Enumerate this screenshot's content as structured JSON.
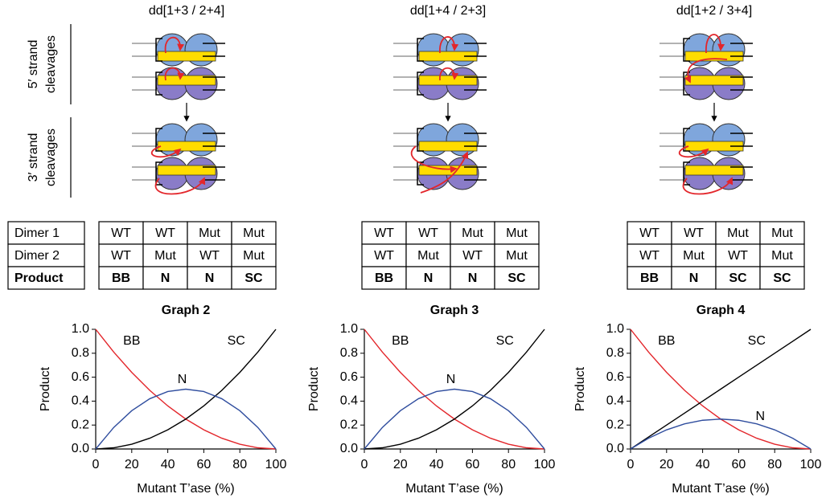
{
  "panels": [
    {
      "title": "dd[1+3 / 2+4]"
    },
    {
      "title": "dd[1+4 / 2+3]"
    },
    {
      "title": "dd[1+2 / 3+4]"
    }
  ],
  "side_labels": [
    {
      "lines": [
        "5′ strand",
        "cleavages"
      ]
    },
    {
      "lines": [
        "3′ strand",
        "cleavages"
      ]
    }
  ],
  "table_row_headers": [
    "Dimer 1",
    "Dimer 2",
    "Product"
  ],
  "tables": [
    {
      "rows": [
        [
          "WT",
          "WT",
          "Mut",
          "Mut"
        ],
        [
          "WT",
          "Mut",
          "WT",
          "Mut"
        ],
        [
          "BB",
          "N",
          "N",
          "SC"
        ]
      ]
    },
    {
      "rows": [
        [
          "WT",
          "WT",
          "Mut",
          "Mut"
        ],
        [
          "WT",
          "Mut",
          "WT",
          "Mut"
        ],
        [
          "BB",
          "N",
          "N",
          "SC"
        ]
      ]
    },
    {
      "rows": [
        [
          "WT",
          "WT",
          "Mut",
          "Mut"
        ],
        [
          "WT",
          "Mut",
          "WT",
          "Mut"
        ],
        [
          "BB",
          "N",
          "SC",
          "SC"
        ]
      ]
    }
  ],
  "chart_data": [
    {
      "type": "line",
      "title": "Graph 2",
      "x_label": "Mutant T’ase (%)",
      "y_label": "Product",
      "x": [
        0,
        10,
        20,
        30,
        40,
        50,
        60,
        70,
        80,
        90,
        100
      ],
      "series": [
        {
          "name": "BB",
          "color": "#e3262b",
          "values": [
            1,
            0.81,
            0.64,
            0.49,
            0.36,
            0.25,
            0.16,
            0.09,
            0.04,
            0.01,
            0
          ]
        },
        {
          "name": "SC",
          "color": "#000000",
          "values": [
            0,
            0.01,
            0.04,
            0.09,
            0.16,
            0.25,
            0.36,
            0.49,
            0.64,
            0.81,
            1
          ]
        },
        {
          "name": "N",
          "color": "#2f4d9e",
          "values": [
            0,
            0.18,
            0.32,
            0.42,
            0.48,
            0.5,
            0.48,
            0.42,
            0.32,
            0.18,
            0
          ]
        }
      ],
      "xlim": [
        0,
        100
      ],
      "ylim": [
        0,
        1
      ],
      "xticks": [
        0,
        20,
        40,
        60,
        80,
        100
      ],
      "yticks": [
        {
          "value": 0,
          "label": "0.0"
        },
        0.2,
        0.4,
        0.6,
        0.8,
        {
          "value": 1,
          "label": "1.0"
        }
      ]
    },
    {
      "type": "line",
      "title": "Graph 3",
      "x_label": "Mutant T’ase (%)",
      "y_label": "Product",
      "x": [
        0,
        10,
        20,
        30,
        40,
        50,
        60,
        70,
        80,
        90,
        100
      ],
      "series": [
        {
          "name": "BB",
          "color": "#e3262b",
          "values": [
            1,
            0.81,
            0.64,
            0.49,
            0.36,
            0.25,
            0.16,
            0.09,
            0.04,
            0.01,
            0
          ]
        },
        {
          "name": "SC",
          "color": "#000000",
          "values": [
            0,
            0.01,
            0.04,
            0.09,
            0.16,
            0.25,
            0.36,
            0.49,
            0.64,
            0.81,
            1
          ]
        },
        {
          "name": "N",
          "color": "#2f4d9e",
          "values": [
            0,
            0.18,
            0.32,
            0.42,
            0.48,
            0.5,
            0.48,
            0.42,
            0.32,
            0.18,
            0
          ]
        }
      ],
      "xlim": [
        0,
        100
      ],
      "ylim": [
        0,
        1
      ],
      "xticks": [
        0,
        20,
        40,
        60,
        80,
        100
      ],
      "yticks": [
        {
          "value": 0,
          "label": "0.0"
        },
        0.2,
        0.4,
        0.6,
        0.8,
        {
          "value": 1,
          "label": "1.0"
        }
      ]
    },
    {
      "type": "line",
      "title": "Graph 4",
      "x_label": "Mutant T’ase (%)",
      "y_label": "Product",
      "x": [
        0,
        10,
        20,
        30,
        40,
        50,
        60,
        70,
        80,
        90,
        100
      ],
      "series": [
        {
          "name": "BB",
          "color": "#e3262b",
          "values": [
            1,
            0.81,
            0.64,
            0.49,
            0.36,
            0.25,
            0.16,
            0.09,
            0.04,
            0.01,
            0
          ]
        },
        {
          "name": "SC",
          "color": "#000000",
          "values": [
            0,
            0.1,
            0.2,
            0.3,
            0.4,
            0.5,
            0.6,
            0.7,
            0.8,
            0.9,
            1
          ]
        },
        {
          "name": "N",
          "color": "#2f4d9e",
          "values": [
            0,
            0.09,
            0.16,
            0.21,
            0.24,
            0.25,
            0.24,
            0.21,
            0.16,
            0.09,
            0
          ]
        }
      ],
      "xlim": [
        0,
        100
      ],
      "ylim": [
        0,
        1
      ],
      "xticks": [
        0,
        20,
        40,
        60,
        80,
        100
      ],
      "yticks": [
        {
          "value": 0,
          "label": "0.0"
        },
        0.2,
        0.4,
        0.6,
        0.8,
        {
          "value": 1,
          "label": "1.0"
        }
      ]
    }
  ]
}
